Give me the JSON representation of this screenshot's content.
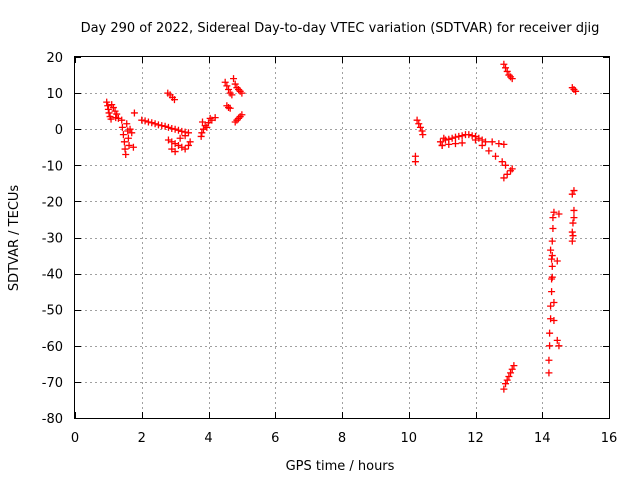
{
  "chart_data": {
    "type": "scatter",
    "title": "Day 290 of 2022, Sidereal Day-to-day VTEC variation (SDTVAR) for receiver djig",
    "xlabel": "GPS time / hours",
    "ylabel": "SDTVAR / TECUs",
    "xlim": [
      0,
      16
    ],
    "ylim": [
      -80,
      20
    ],
    "xticks": [
      0,
      2,
      4,
      6,
      8,
      10,
      12,
      14,
      16
    ],
    "yticks": [
      20,
      10,
      0,
      -10,
      -20,
      -30,
      -40,
      -50,
      -60,
      -70,
      -80
    ],
    "grid": true,
    "marker": "+",
    "color": "#ff0000",
    "series": [
      {
        "points": [
          [
            0.95,
            7.5
          ],
          [
            0.98,
            6.5
          ],
          [
            1.0,
            5.5
          ],
          [
            1.02,
            4.5
          ],
          [
            1.05,
            3.5
          ],
          [
            1.08,
            2.8
          ],
          [
            1.1,
            6.8
          ],
          [
            1.15,
            6.0
          ],
          [
            1.2,
            5.0
          ],
          [
            1.22,
            3.2
          ],
          [
            1.25,
            4.2
          ],
          [
            1.3,
            3.0
          ],
          [
            1.4,
            2.5
          ],
          [
            1.42,
            0.5
          ],
          [
            1.45,
            -1.5
          ],
          [
            1.48,
            -3.5
          ],
          [
            1.5,
            -5.5
          ],
          [
            1.52,
            -7.0
          ],
          [
            1.55,
            1.5
          ],
          [
            1.58,
            -0.5
          ],
          [
            1.6,
            -2.5
          ],
          [
            1.62,
            -4.5
          ],
          [
            1.65,
            0.0
          ],
          [
            1.7,
            -1.0
          ],
          [
            1.75,
            -5.0
          ],
          [
            1.78,
            4.5
          ],
          [
            2.0,
            2.5
          ],
          [
            2.1,
            2.3
          ],
          [
            2.2,
            2.0
          ],
          [
            2.3,
            1.8
          ],
          [
            2.4,
            1.5
          ],
          [
            2.5,
            1.2
          ],
          [
            2.6,
            1.0
          ],
          [
            2.7,
            0.8
          ],
          [
            2.8,
            0.5
          ],
          [
            2.9,
            0.2
          ],
          [
            3.0,
            0.0
          ],
          [
            3.1,
            -0.3
          ],
          [
            3.2,
            -0.6
          ],
          [
            3.3,
            -0.8
          ],
          [
            3.4,
            -1.0
          ],
          [
            2.78,
            10.0
          ],
          [
            2.85,
            9.5
          ],
          [
            2.92,
            8.8
          ],
          [
            2.98,
            8.2
          ],
          [
            2.8,
            -3.0
          ],
          [
            2.9,
            -3.5
          ],
          [
            3.0,
            -4.0
          ],
          [
            3.1,
            -4.5
          ],
          [
            3.2,
            -5.0
          ],
          [
            3.3,
            -5.5
          ],
          [
            3.4,
            -4.5
          ],
          [
            3.45,
            -3.5
          ],
          [
            2.9,
            -5.5
          ],
          [
            3.0,
            -6.2
          ],
          [
            3.15,
            -2.5
          ],
          [
            3.3,
            -1.8
          ],
          [
            3.8,
            -1.0
          ],
          [
            3.85,
            0.0
          ],
          [
            3.9,
            1.0
          ],
          [
            4.0,
            1.8
          ],
          [
            4.1,
            2.5
          ],
          [
            4.2,
            3.2
          ],
          [
            3.78,
            -2.0
          ],
          [
            3.82,
            2.0
          ],
          [
            3.95,
            0.5
          ],
          [
            4.05,
            3.0
          ],
          [
            4.5,
            13.0
          ],
          [
            4.55,
            12.0
          ],
          [
            4.6,
            11.0
          ],
          [
            4.65,
            10.0
          ],
          [
            4.7,
            9.5
          ],
          [
            4.75,
            14.0
          ],
          [
            4.8,
            12.5
          ],
          [
            4.85,
            11.5
          ],
          [
            4.9,
            11.0
          ],
          [
            4.95,
            10.5
          ],
          [
            5.0,
            10.0
          ],
          [
            4.55,
            6.5
          ],
          [
            4.6,
            6.0
          ],
          [
            4.65,
            5.8
          ],
          [
            4.8,
            2.0
          ],
          [
            4.85,
            2.5
          ],
          [
            4.9,
            3.0
          ],
          [
            4.95,
            3.5
          ],
          [
            5.0,
            4.0
          ],
          [
            10.2,
            -7.5
          ],
          [
            10.2,
            -9.0
          ],
          [
            10.25,
            2.5
          ],
          [
            10.3,
            1.5
          ],
          [
            10.35,
            0.5
          ],
          [
            10.4,
            -0.5
          ],
          [
            10.42,
            -1.5
          ],
          [
            10.95,
            -3.5
          ],
          [
            11.0,
            -4.5
          ],
          [
            11.05,
            -2.5
          ],
          [
            11.1,
            -3.0
          ],
          [
            11.2,
            -2.8
          ],
          [
            11.3,
            -2.5
          ],
          [
            11.4,
            -2.2
          ],
          [
            11.5,
            -2.0
          ],
          [
            11.6,
            -1.8
          ],
          [
            11.7,
            -1.5
          ],
          [
            11.8,
            -1.5
          ],
          [
            11.9,
            -1.8
          ],
          [
            12.0,
            -2.0
          ],
          [
            12.1,
            -2.5
          ],
          [
            12.2,
            -3.0
          ],
          [
            12.3,
            -3.5
          ],
          [
            11.0,
            -4.5
          ],
          [
            11.2,
            -4.2
          ],
          [
            11.4,
            -4.0
          ],
          [
            11.6,
            -3.8
          ],
          [
            12.0,
            -3.0
          ],
          [
            12.2,
            -4.5
          ],
          [
            12.4,
            -6.0
          ],
          [
            12.6,
            -7.5
          ],
          [
            12.8,
            -9.0
          ],
          [
            12.9,
            -10.0
          ],
          [
            12.5,
            -3.5
          ],
          [
            12.7,
            -4.0
          ],
          [
            12.85,
            -4.2
          ],
          [
            12.85,
            -13.5
          ],
          [
            12.95,
            -12.5
          ],
          [
            13.05,
            -11.5
          ],
          [
            13.1,
            -11.0
          ],
          [
            12.85,
            18.0
          ],
          [
            12.9,
            17.0
          ],
          [
            12.95,
            16.0
          ],
          [
            13.0,
            15.0
          ],
          [
            13.05,
            14.5
          ],
          [
            13.1,
            14.0
          ],
          [
            12.85,
            -72.0
          ],
          [
            12.9,
            -70.5
          ],
          [
            12.95,
            -69.5
          ],
          [
            13.0,
            -68.5
          ],
          [
            13.05,
            -67.5
          ],
          [
            13.1,
            -66.5
          ],
          [
            13.15,
            -65.5
          ],
          [
            14.2,
            -67.5
          ],
          [
            14.2,
            -64.0
          ],
          [
            14.22,
            -60.0
          ],
          [
            14.22,
            -56.5
          ],
          [
            14.25,
            -52.5
          ],
          [
            14.25,
            -49.0
          ],
          [
            14.28,
            -45.0
          ],
          [
            14.28,
            -41.5
          ],
          [
            14.3,
            -38.0
          ],
          [
            14.3,
            -35.0
          ],
          [
            14.3,
            -31.0
          ],
          [
            14.32,
            -27.5
          ],
          [
            14.32,
            -24.5
          ],
          [
            14.35,
            -23.0
          ],
          [
            14.25,
            -33.5
          ],
          [
            14.28,
            -36.0
          ],
          [
            14.3,
            -41.0
          ],
          [
            14.35,
            -48.0
          ],
          [
            14.35,
            -53.0
          ],
          [
            14.45,
            -36.5
          ],
          [
            14.45,
            -58.5
          ],
          [
            14.5,
            -60.0
          ],
          [
            14.5,
            -23.5
          ],
          [
            14.9,
            -31.0
          ],
          [
            14.9,
            -28.5
          ],
          [
            14.92,
            -26.0
          ],
          [
            14.95,
            -24.5
          ],
          [
            14.95,
            -22.5
          ],
          [
            14.9,
            -18.0
          ],
          [
            14.95,
            -17.0
          ],
          [
            14.92,
            -29.5
          ],
          [
            14.9,
            11.5
          ],
          [
            14.95,
            11.0
          ],
          [
            15.0,
            10.5
          ]
        ]
      }
    ]
  }
}
